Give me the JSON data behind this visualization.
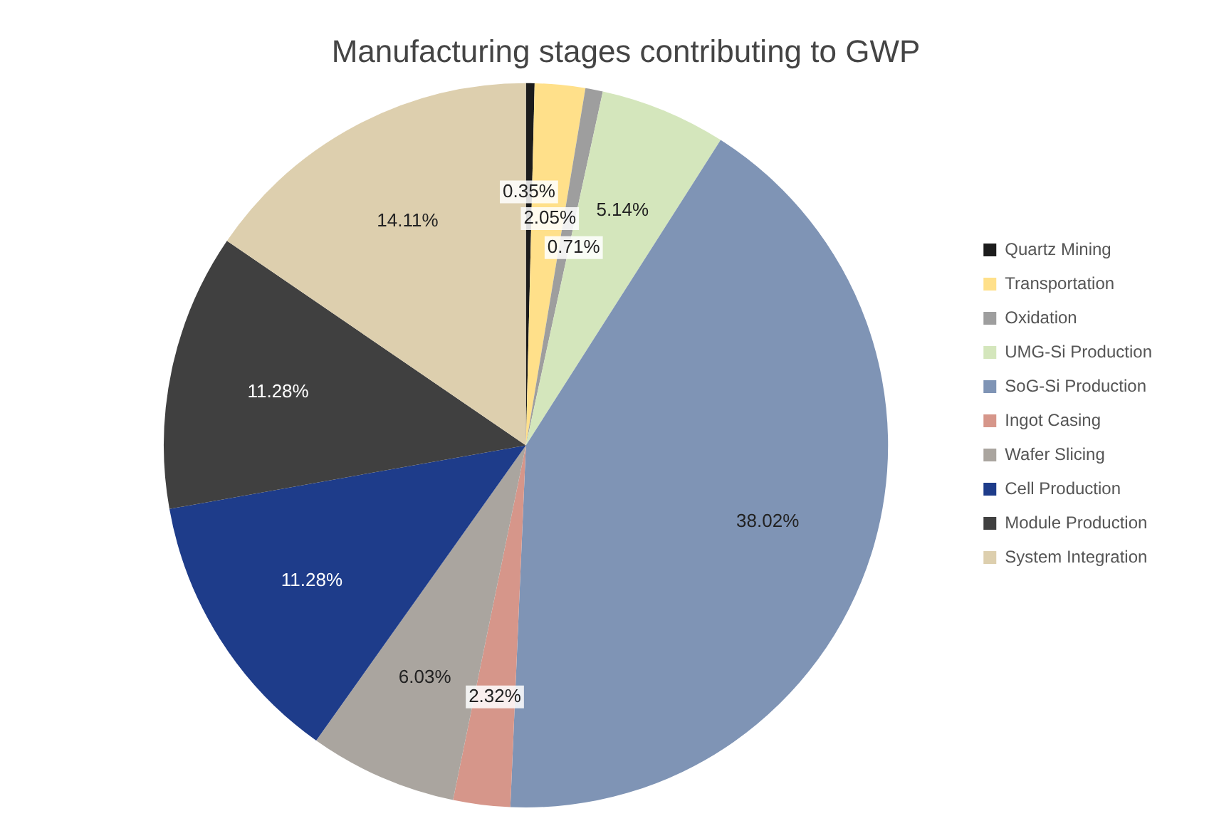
{
  "chart_data": {
    "type": "pie",
    "title": "Manufacturing stages contributing to GWP",
    "categories": [
      "Quartz Mining",
      "Transportation",
      "Oxidation",
      "UMG-Si Production",
      "SoG-Si Production",
      "Ingot Casing",
      "Wafer Slicing",
      "Cell Production",
      "Module Production",
      "System Integration"
    ],
    "values": [
      0.35,
      2.05,
      0.71,
      5.14,
      38.02,
      2.32,
      6.03,
      11.28,
      11.28,
      14.11
    ],
    "value_labels": [
      "0.35%",
      "2.05%",
      "0.71%",
      "5.14%",
      "38.02%",
      "2.32%",
      "6.03%",
      "11.28%",
      "11.28%",
      "14.11%"
    ],
    "colors": [
      "#1c1c1c",
      "#ffe08a",
      "#9e9e9e",
      "#d4e6bc",
      "#7f94b5",
      "#d6968a",
      "#aaa59f",
      "#1e3c8a",
      "#404040",
      "#ddcfae"
    ],
    "legend": "right"
  }
}
